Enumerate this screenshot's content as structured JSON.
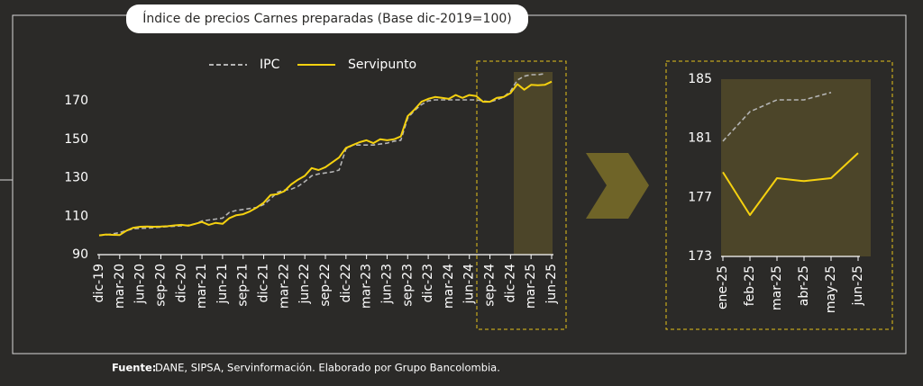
{
  "title": "Índice de precios Carnes preparadas (Base dic-2019=100)",
  "source": {
    "label": "Fuente:",
    "text": "DANE, SIPSA, Servinformación. Elaborado por Grupo Bancolombia."
  },
  "chart_data": [
    {
      "type": "line",
      "categories": [
        "dic-19",
        null,
        null,
        "mar-20",
        null,
        null,
        "jun-20",
        null,
        null,
        "sep-20",
        null,
        null,
        "dic-20",
        null,
        null,
        "mar-21",
        null,
        null,
        "jun-21",
        null,
        null,
        "sep-21",
        null,
        null,
        "dic-21",
        null,
        null,
        "mar-22",
        null,
        null,
        "jun-22",
        null,
        null,
        "sep-22",
        null,
        null,
        "dic-22",
        null,
        null,
        "mar-23",
        null,
        null,
        "jun-23",
        null,
        null,
        "sep-23",
        null,
        null,
        "dic-23",
        null,
        null,
        "mar-24",
        null,
        null,
        "jun-24",
        null,
        null,
        "sep-24",
        null,
        null,
        "dic-24",
        null,
        null,
        "mar-25",
        null,
        null,
        "jun-25"
      ],
      "series": [
        {
          "name": "IPC",
          "color": "#b4b4b4",
          "dashed": true,
          "values": [
            100,
            100.3,
            100.8,
            101.5,
            102.5,
            103.5,
            103.7,
            103.8,
            104,
            104.3,
            104.6,
            104.8,
            105,
            105.3,
            106,
            107.5,
            108,
            108.5,
            109,
            112,
            113,
            113.5,
            114,
            114.5,
            116,
            119,
            122.5,
            123.5,
            124,
            125.5,
            128,
            131,
            132,
            132.5,
            133,
            134,
            145,
            147,
            147,
            147,
            147,
            147.5,
            148,
            149,
            149.5,
            161,
            165,
            168,
            170,
            170.5,
            170.5,
            170.5,
            170.5,
            170.5,
            170.5,
            170.5,
            170,
            169.5,
            170.5,
            172,
            175,
            180.8,
            182.8,
            183.6,
            183.6,
            184.1,
            null
          ]
        },
        {
          "name": "Servipunto",
          "color": "#f5d10f",
          "dashed": false,
          "values": [
            100,
            100.5,
            100.3,
            100.2,
            102.5,
            104,
            104.5,
            104.6,
            104.5,
            104.6,
            104.8,
            105.2,
            105.5,
            105,
            106,
            107,
            105.5,
            106.5,
            106,
            109,
            110.5,
            111,
            112.5,
            114.5,
            117,
            121,
            121.5,
            123,
            126.5,
            129,
            131,
            135,
            134,
            135.5,
            138,
            140.5,
            145.5,
            147,
            148.5,
            149.5,
            148,
            150,
            149.5,
            150,
            151.5,
            162,
            165.5,
            169.5,
            171,
            172,
            171.5,
            171,
            173,
            171.5,
            173,
            172.5,
            169.5,
            169.5,
            171.5,
            172,
            174,
            178.7,
            175.8,
            178.3,
            178.1,
            178.3,
            180
          ]
        }
      ],
      "ylim": [
        90,
        185
      ],
      "yticks": [
        90,
        110,
        130,
        150,
        170
      ],
      "legend": "top"
    },
    {
      "type": "line",
      "categories": [
        "ene-25",
        "feb-25",
        "mar-25",
        "abr-25",
        "may-25",
        "jun-25"
      ],
      "series": [
        {
          "name": "IPC",
          "color": "#b4b4b4",
          "dashed": true,
          "values": [
            180.8,
            182.8,
            183.6,
            183.6,
            184.1,
            null
          ]
        },
        {
          "name": "Servipunto",
          "color": "#f5d10f",
          "dashed": false,
          "values": [
            178.7,
            175.8,
            178.3,
            178.1,
            178.3,
            180
          ]
        }
      ],
      "ylim": [
        173,
        185
      ],
      "yticks": [
        173,
        177,
        181,
        185
      ],
      "legend": "none"
    }
  ]
}
